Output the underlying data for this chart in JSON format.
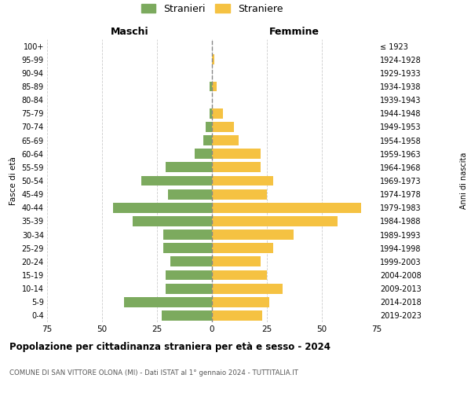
{
  "age_groups": [
    "0-4",
    "5-9",
    "10-14",
    "15-19",
    "20-24",
    "25-29",
    "30-34",
    "35-39",
    "40-44",
    "45-49",
    "50-54",
    "55-59",
    "60-64",
    "65-69",
    "70-74",
    "75-79",
    "80-84",
    "85-89",
    "90-94",
    "95-99",
    "100+"
  ],
  "birth_years": [
    "2019-2023",
    "2014-2018",
    "2009-2013",
    "2004-2008",
    "1999-2003",
    "1994-1998",
    "1989-1993",
    "1984-1988",
    "1979-1983",
    "1974-1978",
    "1969-1973",
    "1964-1968",
    "1959-1963",
    "1954-1958",
    "1949-1953",
    "1944-1948",
    "1939-1943",
    "1934-1938",
    "1929-1933",
    "1924-1928",
    "≤ 1923"
  ],
  "males": [
    23,
    40,
    21,
    21,
    19,
    22,
    22,
    36,
    45,
    20,
    32,
    21,
    8,
    4,
    3,
    1,
    0,
    1,
    0,
    0,
    0
  ],
  "females": [
    23,
    26,
    32,
    25,
    22,
    28,
    37,
    57,
    68,
    25,
    28,
    22,
    22,
    12,
    10,
    5,
    0,
    2,
    0,
    1,
    0
  ],
  "male_color": "#7caa5e",
  "female_color": "#f5c242",
  "male_label": "Stranieri",
  "female_label": "Straniere",
  "maschi_label": "Maschi",
  "femmine_label": "Femmine",
  "fasce_label": "Fasce di età",
  "anni_label": "Anni di nascita",
  "title": "Popolazione per cittadinanza straniera per età e sesso - 2024",
  "subtitle": "COMUNE DI SAN VITTORE OLONA (MI) - Dati ISTAT al 1° gennaio 2024 - TUTTITALIA.IT",
  "xlim": 75,
  "bg_color": "#ffffff",
  "grid_color": "#cccccc"
}
